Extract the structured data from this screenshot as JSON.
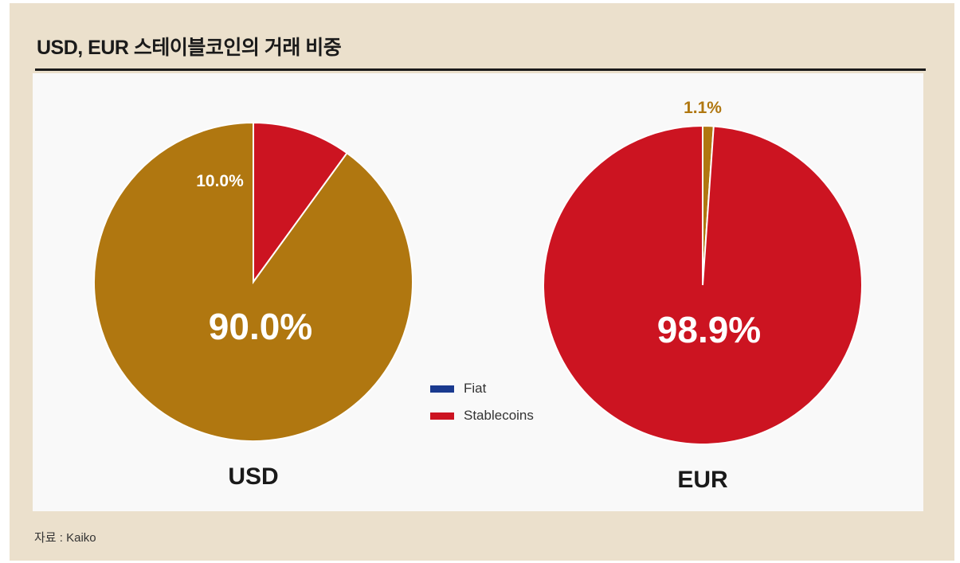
{
  "title": "USD, EUR 스테이블코인의 거래 비중",
  "source": "자료 : Kaiko",
  "colors": {
    "Fiat": "#1a3a8f",
    "Stablecoins": "#cc1421",
    "ochre": "#b07710",
    "background_frame": "#ebe0cc",
    "panel": "#f9f9f9"
  },
  "chart_data": [
    {
      "type": "pie",
      "name": "USD",
      "slices": [
        {
          "label": "10.0%",
          "value": 10.0,
          "color": "#cc1421"
        },
        {
          "label": "90.0%",
          "value": 90.0,
          "color": "#b07710"
        }
      ]
    },
    {
      "type": "pie",
      "name": "EUR",
      "slices": [
        {
          "label": "1.1%",
          "value": 1.1,
          "color": "#b07710"
        },
        {
          "label": "98.9%",
          "value": 98.9,
          "color": "#cc1421"
        }
      ]
    }
  ],
  "legend": {
    "placement": "center",
    "items": [
      {
        "label": "Fiat",
        "color": "#1a3a8f"
      },
      {
        "label": "Stablecoins",
        "color": "#cc1421"
      }
    ]
  }
}
